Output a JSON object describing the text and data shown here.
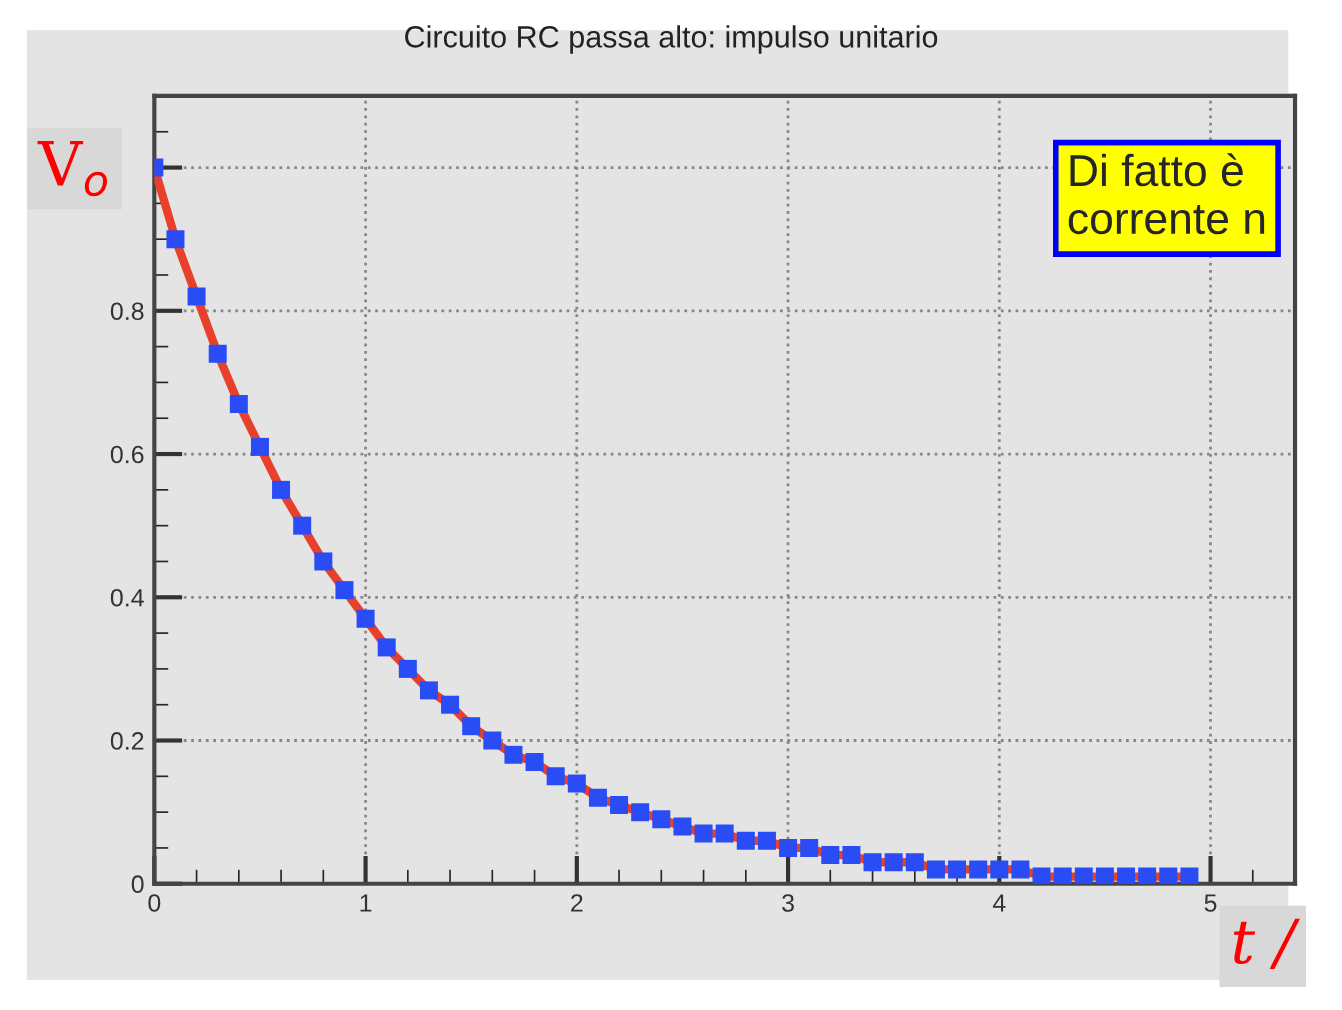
{
  "chart_data": {
    "type": "line",
    "title": "Circuito RC passa alto: impulso unitario",
    "xlabel": "t /",
    "ylabel": "V$_{o}$",
    "x": [
      0,
      0.1,
      0.2,
      0.3,
      0.4,
      0.5,
      0.6,
      0.7,
      0.8,
      0.9,
      1.0,
      1.1,
      1.2,
      1.3,
      1.4,
      1.5,
      1.6,
      1.7,
      1.8,
      1.9,
      2.0,
      2.1,
      2.2,
      2.3,
      2.4,
      2.5,
      2.6,
      2.7,
      2.8,
      2.9,
      3.0,
      3.1,
      3.2,
      3.3,
      3.4,
      3.5,
      3.6,
      3.7,
      3.8,
      3.9,
      4.0,
      4.1,
      4.2,
      4.3,
      4.4,
      4.5,
      4.6,
      4.7,
      4.8,
      4.9
    ],
    "series": [
      {
        "color": "#e8402a",
        "marker": "none",
        "values": [
          1.0,
          0.9,
          0.82,
          0.74,
          0.67,
          0.61,
          0.55,
          0.5,
          0.45,
          0.41,
          0.37,
          0.33,
          0.3,
          0.27,
          0.25,
          0.22,
          0.2,
          0.18,
          0.17,
          0.15,
          0.14,
          0.12,
          0.11,
          0.1,
          0.09,
          0.08,
          0.07,
          0.07,
          0.06,
          0.06,
          0.05,
          0.05,
          0.04,
          0.04,
          0.03,
          0.03,
          0.03,
          0.02,
          0.02,
          0.02,
          0.02,
          0.02,
          0.01,
          0.01,
          0.01,
          0.01,
          0.01,
          0.01,
          0.01,
          0.01
        ]
      },
      {
        "type": "scatter",
        "color": "#2a4cf5",
        "marker": "square",
        "values": [
          1.0,
          0.9,
          0.82,
          0.74,
          0.67,
          0.61,
          0.55,
          0.5,
          0.45,
          0.41,
          0.37,
          0.33,
          0.3,
          0.27,
          0.25,
          0.22,
          0.2,
          0.18,
          0.17,
          0.15,
          0.14,
          0.12,
          0.11,
          0.1,
          0.09,
          0.08,
          0.07,
          0.07,
          0.06,
          0.06,
          0.05,
          0.05,
          0.04,
          0.04,
          0.03,
          0.03,
          0.03,
          0.02,
          0.02,
          0.02,
          0.02,
          0.02,
          0.01,
          0.01,
          0.01,
          0.01,
          0.01,
          0.01,
          0.01,
          0.01
        ]
      }
    ],
    "xlim": [
      0,
      5.4
    ],
    "ylim": [
      0,
      1.1
    ],
    "xticks": [
      0,
      1,
      2,
      3,
      4,
      5
    ],
    "yticks": [
      0,
      0.2,
      0.4,
      0.6,
      0.8,
      {
        "value": 1,
        "label": null
      }
    ],
    "grid": true,
    "annotations": [
      "Di fatto è\ncorrente n"
    ]
  }
}
